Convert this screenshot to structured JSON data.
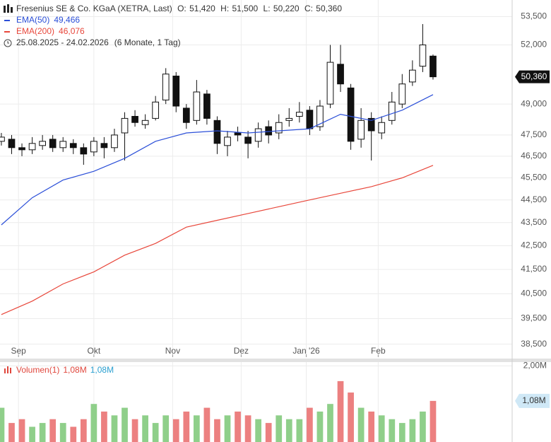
{
  "chart_data": [
    {
      "type": "candlestick",
      "title": "Fresenius SE & Co. KGaA (XETRA, Last)",
      "ohlc": [
        {
          "name": "O:",
          "value": 51.42,
          "label": "51,420"
        },
        {
          "name": "H:",
          "value": 51.5,
          "label": "51,500"
        },
        {
          "name": "L:",
          "value": 50.22,
          "label": "50,220"
        },
        {
          "name": "C:",
          "value": 50.36,
          "label": "50,360"
        }
      ],
      "date_range": "25.08.2025 - 24.02.2026",
      "period": "(6 Monate, 1 Tag)",
      "x": [
        0,
        3,
        6,
        9,
        12,
        15,
        18,
        21,
        24,
        27,
        30,
        33,
        36,
        39,
        42,
        45,
        48,
        51,
        54,
        57,
        60,
        63,
        66,
        69,
        72,
        75,
        78,
        81,
        84,
        87,
        90,
        93,
        96,
        99,
        102,
        105,
        108,
        111,
        114,
        117,
        120,
        123,
        126
      ],
      "open": [
        47.2,
        47.3,
        46.9,
        46.8,
        47.0,
        47.3,
        46.9,
        47.1,
        46.9,
        46.7,
        47.1,
        46.9,
        47.6,
        48.4,
        48.0,
        48.3,
        49.2,
        50.4,
        48.8,
        48.2,
        49.5,
        48.2,
        47.0,
        47.6,
        47.4,
        47.2,
        47.9,
        47.6,
        48.2,
        48.4,
        48.7,
        47.9,
        49.0,
        51.0,
        49.8,
        47.3,
        48.3,
        47.6,
        48.2,
        49.0,
        50.1,
        50.9,
        51.42
      ],
      "high": [
        47.6,
        47.5,
        47.1,
        47.4,
        47.5,
        47.5,
        47.4,
        47.3,
        47.1,
        47.4,
        47.4,
        47.8,
        48.6,
        48.7,
        48.5,
        49.4,
        50.8,
        50.6,
        49.0,
        50.2,
        49.7,
        48.4,
        47.7,
        47.9,
        47.7,
        48.1,
        48.2,
        48.5,
        48.8,
        49.1,
        48.9,
        49.2,
        52.0,
        52.0,
        50.0,
        48.8,
        48.6,
        48.4,
        49.6,
        50.5,
        51.2,
        53.1,
        51.5
      ],
      "low": [
        47.0,
        46.6,
        46.5,
        46.6,
        46.8,
        46.7,
        46.7,
        46.6,
        46.1,
        46.5,
        46.4,
        46.7,
        46.3,
        47.9,
        47.8,
        48.2,
        49.0,
        48.6,
        47.8,
        48.0,
        48.0,
        46.6,
        46.5,
        47.2,
        46.4,
        46.9,
        47.1,
        47.3,
        47.9,
        48.1,
        47.5,
        47.7,
        48.8,
        49.6,
        46.8,
        46.9,
        46.3,
        47.3,
        48.0,
        48.8,
        49.9,
        50.6,
        50.22
      ],
      "close": [
        47.4,
        46.9,
        46.8,
        47.1,
        47.2,
        46.9,
        47.2,
        46.9,
        46.6,
        47.2,
        46.9,
        47.5,
        48.3,
        48.1,
        48.2,
        49.1,
        50.5,
        48.9,
        48.1,
        49.6,
        48.3,
        47.1,
        47.4,
        47.5,
        47.1,
        47.8,
        47.5,
        48.1,
        48.3,
        48.6,
        47.8,
        48.9,
        51.1,
        50.0,
        47.2,
        48.2,
        47.7,
        48.1,
        49.1,
        50.0,
        50.7,
        52.0,
        50.36
      ],
      "color": "#111111",
      "series": [
        {
          "name": "EMA(50)",
          "color": "#2b4fd8",
          "x": [
            0,
            9,
            18,
            27,
            36,
            45,
            54,
            63,
            72,
            81,
            90,
            99,
            108,
            117,
            126
          ],
          "values": [
            43.4,
            44.6,
            45.4,
            45.8,
            46.4,
            47.2,
            47.6,
            47.7,
            47.6,
            47.7,
            47.8,
            48.5,
            48.2,
            48.7,
            49.466
          ],
          "last": {
            "value": 49.466,
            "label": "49,466"
          }
        },
        {
          "name": "EMA(200)",
          "color": "#e8473b",
          "x": [
            0,
            9,
            18,
            27,
            36,
            45,
            54,
            63,
            72,
            81,
            90,
            99,
            108,
            117,
            126
          ],
          "values": [
            39.66,
            40.2,
            40.9,
            41.4,
            42.1,
            42.6,
            43.3,
            43.6,
            43.9,
            44.2,
            44.5,
            44.8,
            45.1,
            45.5,
            46.076
          ],
          "last": {
            "value": 46.076,
            "label": "46,076"
          }
        }
      ],
      "last_price": {
        "value": 50.36,
        "label": "50,360"
      },
      "xlim": [
        -0.4,
        149.1
      ],
      "xticks": [
        {
          "value": 5,
          "label": "Sep"
        },
        {
          "value": 27,
          "label": "Okt"
        },
        {
          "value": 50,
          "label": "Nov"
        },
        {
          "value": 70,
          "label": "Dez"
        },
        {
          "value": 89,
          "label": "Jan '26"
        },
        {
          "value": 110,
          "label": "Feb"
        }
      ],
      "ylim": [
        38.0,
        54.4
      ],
      "log_scale": true,
      "yticks": [
        {
          "value": 53.5,
          "label": "53,500"
        },
        {
          "value": 52,
          "label": "52,000"
        },
        {
          "value": 49,
          "label": "49,000"
        },
        {
          "value": 47.5,
          "label": "47,500"
        },
        {
          "value": 46.5,
          "label": "46,500"
        },
        {
          "value": 45.5,
          "label": "45,500"
        },
        {
          "value": 44.5,
          "label": "44,500"
        },
        {
          "value": 43.5,
          "label": "43,500"
        },
        {
          "value": 42.5,
          "label": "42,500"
        },
        {
          "value": 41.5,
          "label": "41,500"
        },
        {
          "value": 40.5,
          "label": "40,500"
        },
        {
          "value": 39.5,
          "label": "39,500"
        },
        {
          "value": 38.5,
          "label": "38,500"
        }
      ],
      "grid": true
    },
    {
      "type": "bar",
      "title": "Volumen(1)",
      "x": [
        0,
        3,
        6,
        9,
        12,
        15,
        18,
        21,
        24,
        27,
        30,
        33,
        36,
        39,
        42,
        45,
        48,
        51,
        54,
        57,
        60,
        63,
        66,
        69,
        72,
        75,
        78,
        81,
        84,
        87,
        90,
        93,
        96,
        99,
        102,
        105,
        108,
        111,
        114,
        117,
        120,
        123,
        126
      ],
      "values": [
        0.9,
        0.5,
        0.6,
        0.4,
        0.5,
        0.6,
        0.5,
        0.4,
        0.6,
        1.0,
        0.8,
        0.7,
        0.9,
        0.6,
        0.7,
        0.5,
        0.7,
        0.6,
        0.8,
        0.7,
        0.9,
        0.6,
        0.7,
        0.8,
        0.7,
        0.6,
        0.5,
        0.7,
        0.6,
        0.6,
        0.9,
        0.8,
        1.0,
        1.6,
        1.3,
        0.9,
        0.8,
        0.7,
        0.6,
        0.5,
        0.6,
        0.8,
        1.08
      ],
      "up_color": "#8fcf8a",
      "down_color": "#ec8080",
      "legend_values": [
        {
          "value": 1.08,
          "label": "1,08M",
          "color": "#e0463c"
        },
        {
          "value": 1.08,
          "label": "1,08M",
          "color": "#2a9fd0"
        }
      ],
      "last_value": {
        "value": 1.08,
        "label": "1,08M"
      },
      "ylim": [
        0,
        2.1
      ],
      "yticks": [
        {
          "value": 2.0,
          "label": "2,00M"
        }
      ],
      "grid": true
    }
  ]
}
